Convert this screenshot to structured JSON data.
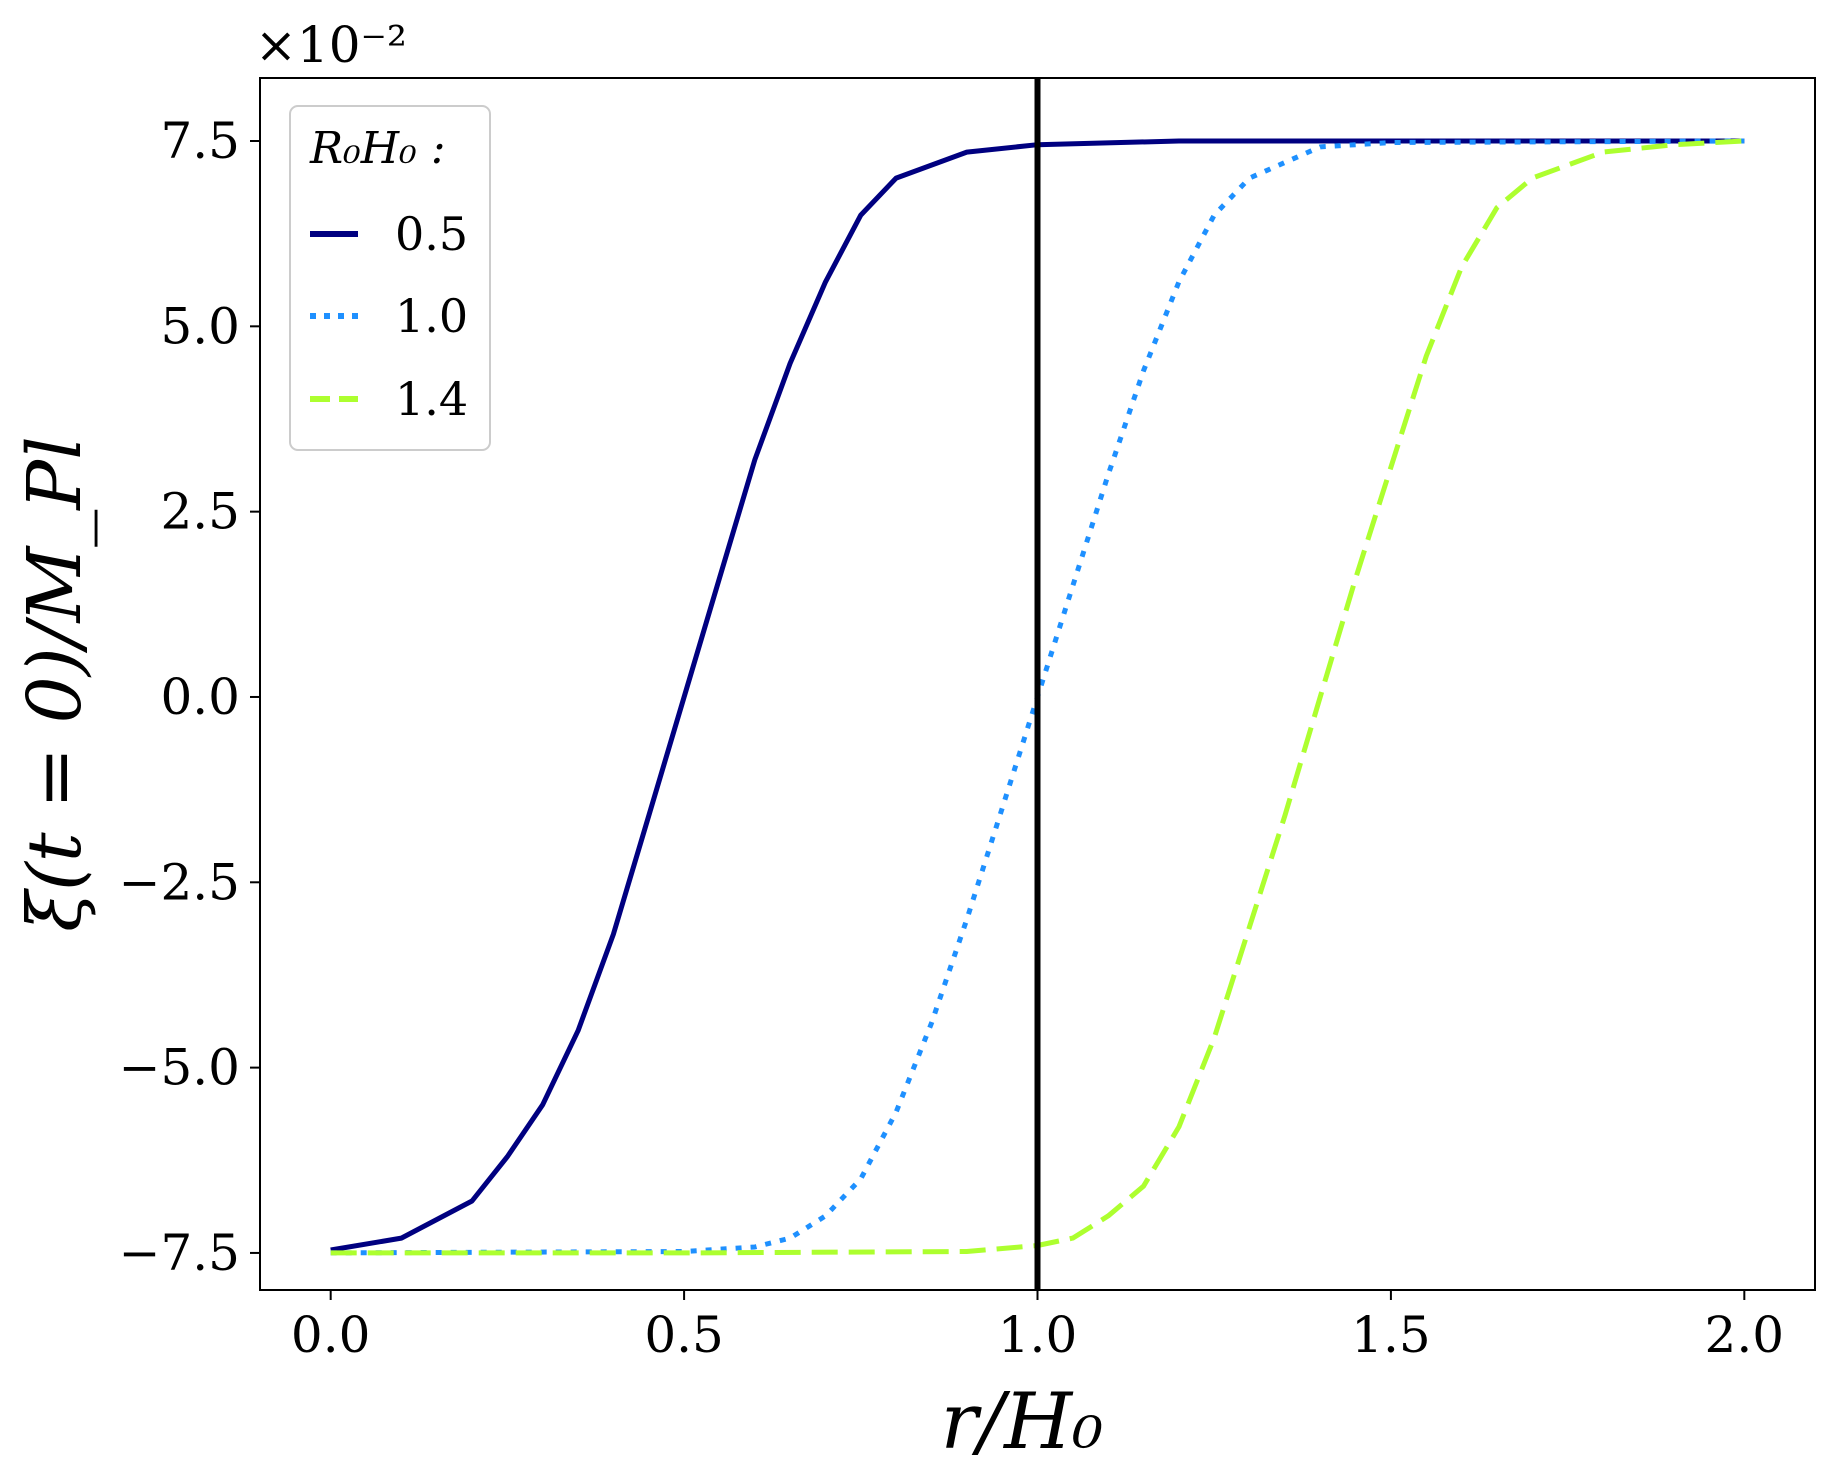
{
  "chart_data": {
    "type": "line",
    "xlabel": "r/H₀",
    "ylabel": "ξ(t = 0)/M_Pl",
    "y_multiplier": "×10⁻²",
    "xlim": [
      -0.1,
      2.1
    ],
    "ylim": [
      -8.0,
      8.35
    ],
    "x_ticks": [
      0.0,
      0.5,
      1.0,
      1.5,
      2.0
    ],
    "x_tick_labels": [
      "0.0",
      "0.5",
      "1.0",
      "1.5",
      "2.0"
    ],
    "y_ticks": [
      -7.5,
      -5.0,
      -2.5,
      0.0,
      2.5,
      5.0,
      7.5
    ],
    "y_tick_labels": [
      "−7.5",
      "−5.0",
      "−2.5",
      "0.0",
      "2.5",
      "5.0",
      "7.5"
    ],
    "vline_x": 1.0,
    "legend": {
      "title": "R₀H₀ :",
      "position": "upper-left"
    },
    "grid": false,
    "series": [
      {
        "name": "0.5",
        "color": "#000080",
        "style": "solid",
        "x": [
          0.0,
          0.1,
          0.2,
          0.25,
          0.3,
          0.35,
          0.4,
          0.45,
          0.5,
          0.55,
          0.6,
          0.65,
          0.7,
          0.75,
          0.8,
          0.9,
          1.0,
          1.2,
          1.5,
          2.0
        ],
        "y": [
          -7.46,
          -7.3,
          -6.8,
          -6.2,
          -5.5,
          -4.5,
          -3.2,
          -1.6,
          0.0,
          1.6,
          3.2,
          4.5,
          5.6,
          6.5,
          7.0,
          7.35,
          7.45,
          7.5,
          7.5,
          7.5
        ]
      },
      {
        "name": "1.0",
        "color": "#1e90ff",
        "style": "dotted",
        "x": [
          0.0,
          0.5,
          0.6,
          0.65,
          0.7,
          0.75,
          0.8,
          0.85,
          0.9,
          0.95,
          1.0,
          1.05,
          1.1,
          1.15,
          1.2,
          1.25,
          1.3,
          1.4,
          1.5,
          2.0
        ],
        "y": [
          -7.5,
          -7.48,
          -7.42,
          -7.3,
          -7.0,
          -6.5,
          -5.6,
          -4.4,
          -3.0,
          -1.5,
          0.0,
          1.5,
          3.0,
          4.4,
          5.6,
          6.5,
          7.0,
          7.42,
          7.48,
          7.5
        ]
      },
      {
        "name": "1.4",
        "color": "#adff2f",
        "style": "dashed",
        "x": [
          0.0,
          0.5,
          0.9,
          1.0,
          1.05,
          1.1,
          1.15,
          1.2,
          1.25,
          1.3,
          1.35,
          1.4,
          1.45,
          1.5,
          1.55,
          1.6,
          1.65,
          1.7,
          1.8,
          1.9,
          2.0
        ],
        "y": [
          -7.5,
          -7.5,
          -7.48,
          -7.4,
          -7.3,
          -7.0,
          -6.6,
          -5.8,
          -4.6,
          -3.1,
          -1.6,
          0.0,
          1.6,
          3.1,
          4.6,
          5.8,
          6.6,
          7.0,
          7.35,
          7.45,
          7.5
        ]
      }
    ]
  }
}
